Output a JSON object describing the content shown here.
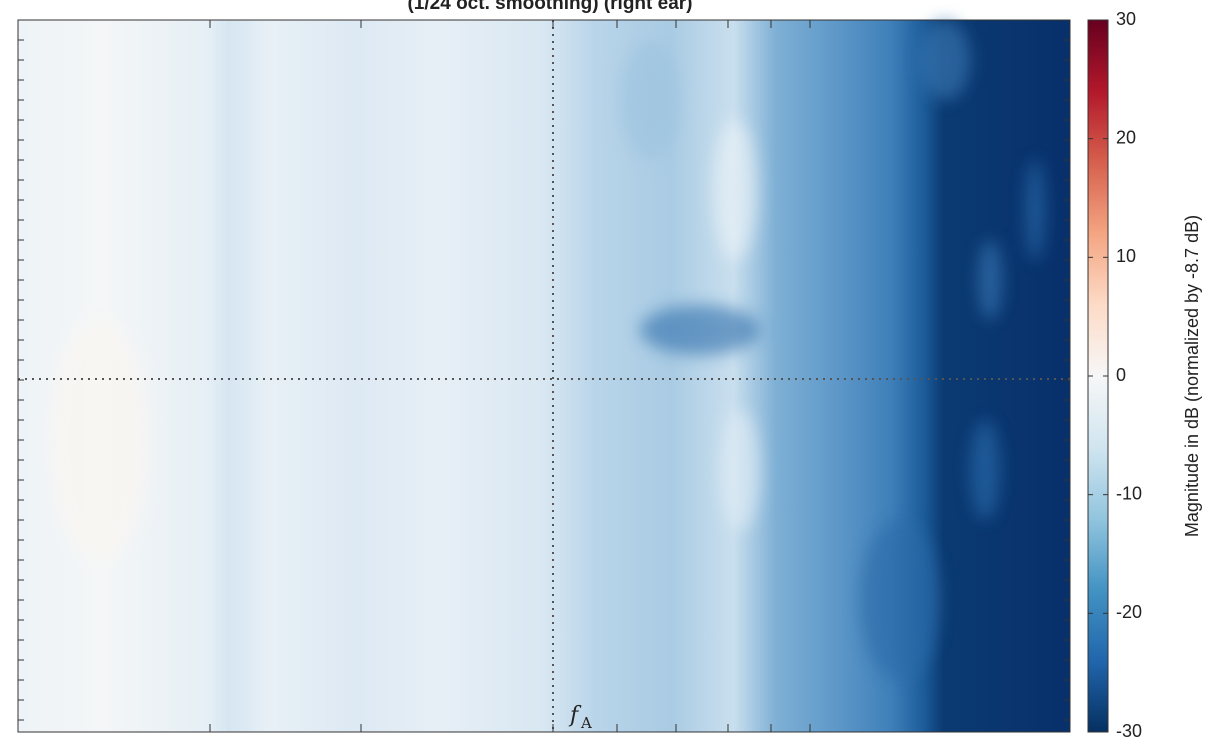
{
  "chart_data": {
    "type": "heatmap",
    "title": "(1/24 oct. smoothing)   (right ear)",
    "colorbar_label": "Magnitude in dB   (normalized by -8.7 dB)",
    "clim": [
      -30,
      30
    ],
    "cticks": [
      -30,
      -20,
      -10,
      0,
      10,
      20,
      30
    ],
    "colormap": [
      "#053061",
      "#2166ac",
      "#4393c3",
      "#92c5de",
      "#d1e5f0",
      "#f7f7f7",
      "#fddbc7",
      "#f4a582",
      "#d6604d",
      "#b2182b",
      "#67001f"
    ],
    "annotation": {
      "symbol": "f",
      "subscript": "A"
    }
  }
}
